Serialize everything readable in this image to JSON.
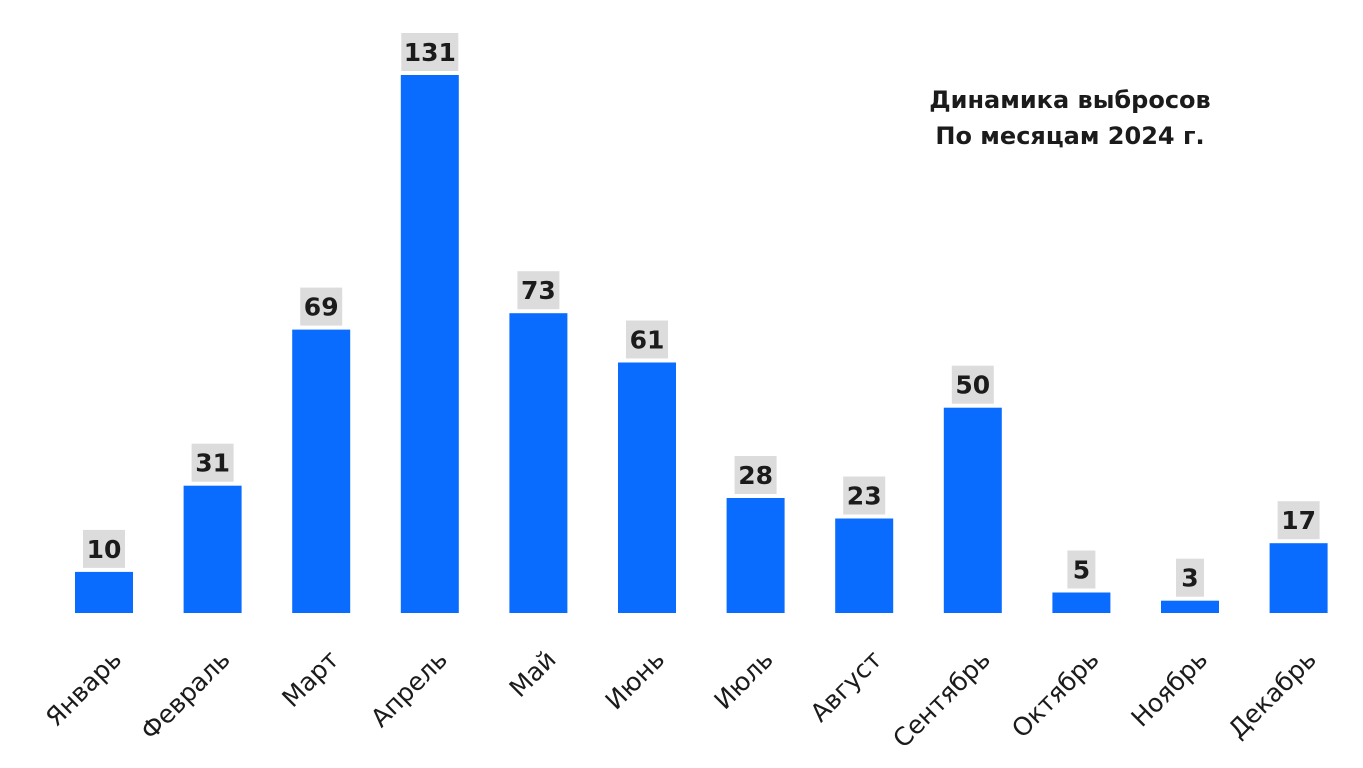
{
  "chart_data": {
    "type": "bar",
    "title": "Динамика выбросов",
    "subtitle": "По месяцам 2024 г.",
    "categories": [
      "Январь",
      "Февраль",
      "Март",
      "Апрель",
      "Май",
      "Июнь",
      "Июль",
      "Август",
      "Сентябрь",
      "Октябрь",
      "Ноябрь",
      "Декабрь"
    ],
    "values": [
      10,
      31,
      69,
      131,
      73,
      61,
      28,
      23,
      50,
      5,
      3,
      17
    ],
    "ylim": [
      0,
      131
    ],
    "xlabel": "",
    "ylabel": "",
    "grid": false,
    "legend": "none",
    "colors": {
      "bar": "#0a6cff",
      "label_bg": "#dcdcdc",
      "label_text": "#1b1b1b",
      "axis_text": "#1b1b1b"
    }
  }
}
